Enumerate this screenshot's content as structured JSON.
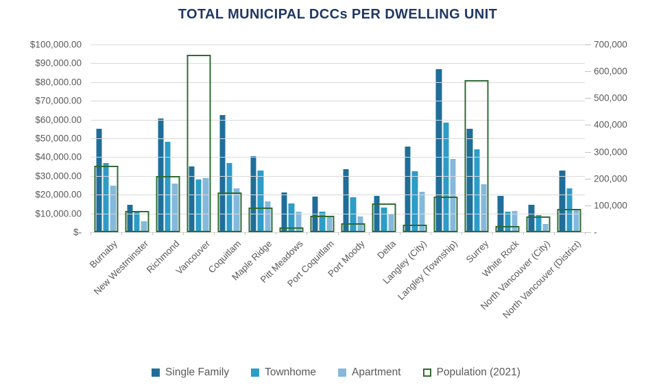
{
  "title": "TOTAL MUNICIPAL DCCs PER DWELLING UNIT",
  "colors": {
    "title": "#1F3864",
    "single_family": "#1F6E99",
    "townhome": "#2D9CC7",
    "apartment": "#85B9DC",
    "population_outline": "#2E6B31",
    "gridline": "#D9D9D9",
    "axis_text": "#595959"
  },
  "chart_data": {
    "type": "bar",
    "title": "TOTAL MUNICIPAL DCCs PER DWELLING UNIT",
    "categories": [
      "Burnaby",
      "New Westminster",
      "Richmond",
      "Vancouver",
      "Coquitlam",
      "Maple Ridge",
      "Pitt Meadows",
      "Port Coquitlam",
      "Port Moody",
      "Delta",
      "Langley (City)",
      "Langley (Township)",
      "Surrey",
      "White Rock",
      "North Vancouver (City)",
      "North Vancouver (District)"
    ],
    "series": [
      {
        "name": "Single Family",
        "axis": "left",
        "color": "#1F6E99",
        "values": [
          55000,
          14500,
          60500,
          35000,
          62500,
          40500,
          21000,
          19000,
          33500,
          19500,
          45500,
          87000,
          55000,
          19500,
          14500,
          33000
        ]
      },
      {
        "name": "Townhome",
        "axis": "left",
        "color": "#2D9CC7",
        "values": [
          37000,
          11000,
          48000,
          28000,
          37000,
          33000,
          15500,
          11000,
          18500,
          13000,
          32500,
          58500,
          44000,
          11000,
          9000,
          23500
        ]
      },
      {
        "name": "Apartment",
        "axis": "left",
        "color": "#85B9DC",
        "values": [
          25000,
          6000,
          26000,
          29000,
          23500,
          16500,
          11000,
          8500,
          8500,
          9500,
          21500,
          39000,
          25500,
          11500,
          4500,
          12000
        ]
      }
    ],
    "population_series": {
      "name": "Population (2021)",
      "axis": "right",
      "style": "outlined-bar",
      "color": "#2E6B31",
      "values": [
        249125,
        78916,
        209937,
        662248,
        148625,
        90990,
        19146,
        61498,
        33535,
        108455,
        28963,
        132603,
        568322,
        21939,
        58120,
        88168
      ]
    },
    "left_axis": {
      "max": 100000,
      "min": 0,
      "labels": [
        "$100,000.00",
        "$90,000.00",
        "$80,000.00",
        "$70,000.00",
        "$60,000.00",
        "$50,000.00",
        "$40,000.00",
        "$30,000.00",
        "$20,000.00",
        "$10,000.00",
        "$-"
      ]
    },
    "right_axis": {
      "max": 700000,
      "min": 0,
      "labels": [
        "700,000",
        "600,000",
        "500,000",
        "400,000",
        "300,000",
        "200,000",
        "100,000",
        "-"
      ]
    },
    "legend": [
      "Single Family",
      "Townhome",
      "Apartment",
      "Population (2021)"
    ],
    "legend_position": "bottom",
    "grid": true
  }
}
